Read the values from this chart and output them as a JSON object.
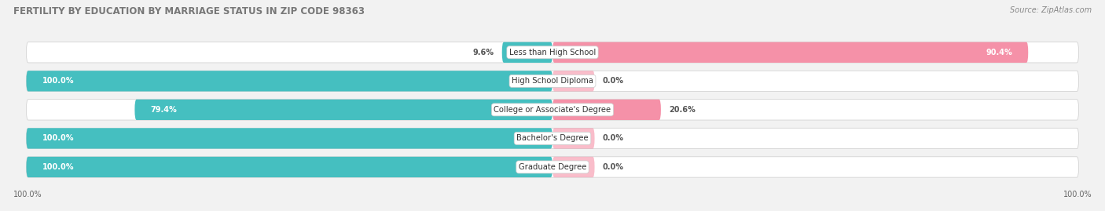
{
  "title": "FERTILITY BY EDUCATION BY MARRIAGE STATUS IN ZIP CODE 98363",
  "source": "Source: ZipAtlas.com",
  "categories": [
    "Less than High School",
    "High School Diploma",
    "College or Associate's Degree",
    "Bachelor's Degree",
    "Graduate Degree"
  ],
  "married": [
    9.6,
    100.0,
    79.4,
    100.0,
    100.0
  ],
  "unmarried": [
    90.4,
    0.0,
    20.6,
    0.0,
    0.0
  ],
  "married_color": "#45bfc0",
  "unmarried_color": "#f591a8",
  "background_color": "#f2f2f2",
  "bar_bg_color": "#e8e8e8",
  "row_bg_color": "#e8e8e8",
  "title_fontsize": 8.5,
  "label_fontsize": 7.0,
  "cat_fontsize": 7.2,
  "tick_fontsize": 7.0,
  "source_fontsize": 7.0
}
